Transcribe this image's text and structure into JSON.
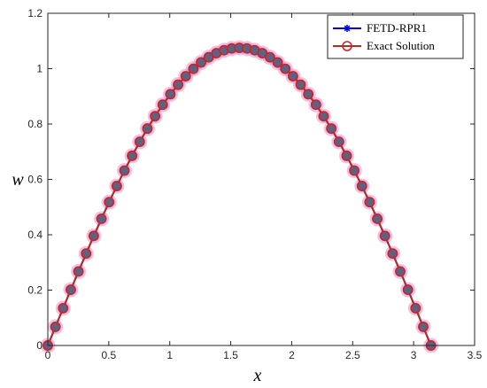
{
  "chart_data": {
    "type": "line",
    "title": "",
    "xlabel": "x",
    "ylabel": "w",
    "xlim": [
      0,
      3.5
    ],
    "ylim": [
      0,
      1.2
    ],
    "xticks": [
      "0",
      "0.5",
      "1",
      "1.5",
      "2",
      "2.5",
      "3",
      "3.5"
    ],
    "yticks": [
      "0",
      "0.2",
      "0.4",
      "0.6",
      "0.8",
      "1",
      "1.2"
    ],
    "grid": false,
    "legend_position": "top-right",
    "amplitude": 1.075,
    "x_end": 3.14159,
    "num_points": 51,
    "series": [
      {
        "name": "FETD-RPR1",
        "color": "#0000ff",
        "marker": "asterisk"
      },
      {
        "name": "Exact Solution",
        "color": "#b03020",
        "marker": "circle",
        "marker_face": "#606080",
        "marker_halo": "#ee88cc"
      }
    ]
  }
}
